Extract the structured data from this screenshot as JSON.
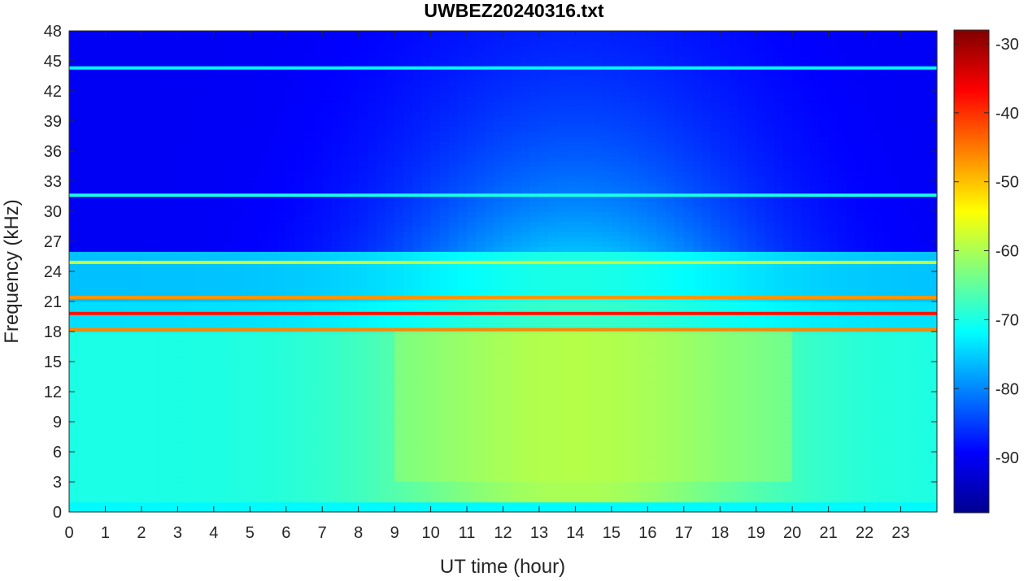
{
  "chart_data": {
    "type": "heatmap",
    "title": "UWBEZ20240316.txt",
    "xlabel": "UT time (hour)",
    "ylabel": "Frequency (kHz)",
    "xlim": [
      0,
      24
    ],
    "ylim": [
      0,
      48
    ],
    "x_ticks": [
      "0",
      "1",
      "2",
      "3",
      "4",
      "5",
      "6",
      "7",
      "8",
      "9",
      "10",
      "11",
      "12",
      "13",
      "14",
      "15",
      "16",
      "17",
      "18",
      "19",
      "20",
      "21",
      "22",
      "23"
    ],
    "y_ticks": [
      "0",
      "3",
      "6",
      "9",
      "12",
      "15",
      "18",
      "21",
      "24",
      "27",
      "30",
      "33",
      "36",
      "39",
      "42",
      "45",
      "48"
    ],
    "colorbar": {
      "colormap": "jet",
      "range": [
        -98,
        -28
      ],
      "ticks": [
        "-30",
        "-40",
        "-50",
        "-60",
        "-70",
        "-80",
        "-90"
      ]
    },
    "features": [
      {
        "description": "strong narrowband transmitter",
        "frequency_khz": 19.8,
        "level_db": -38
      },
      {
        "description": "narrowband transmitter",
        "frequency_khz": 18.2,
        "level_db": -46
      },
      {
        "description": "narrowband transmitter",
        "frequency_khz": 21.4,
        "level_db": -47
      },
      {
        "description": "narrowband line",
        "frequency_khz": 24.9,
        "level_db": -58
      },
      {
        "description": "narrowband line",
        "frequency_khz": 44.3,
        "level_db": -72
      },
      {
        "description": "narrowband line",
        "frequency_khz": 31.6,
        "level_db": -70
      },
      {
        "description": "broadband daytime noise",
        "frequency_range_khz": [
          3,
          18
        ],
        "time_range_h": [
          9,
          20
        ],
        "level_db": -58
      }
    ]
  }
}
